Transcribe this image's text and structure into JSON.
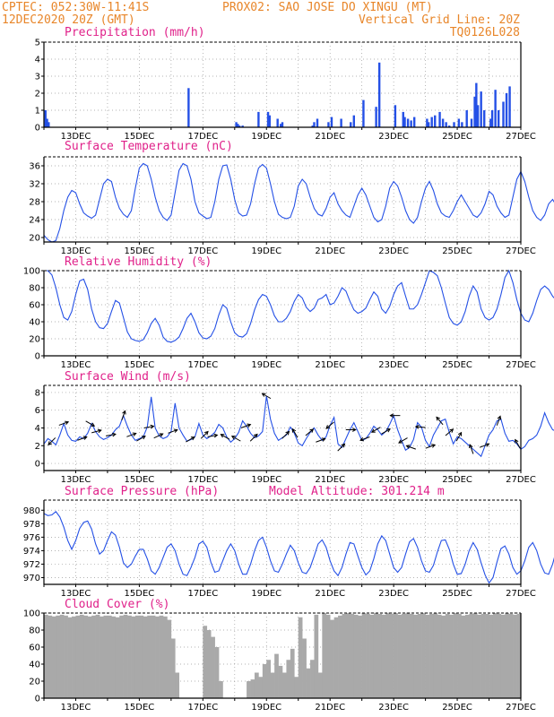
{
  "header": {
    "left_line1": "CPTEC:  052:30W-11:41S",
    "center_line1": "PROX02: SAO JOSE DO XINGU (MT)",
    "left_line2": "12DEC2020 20Z (GMT)",
    "right_line2": "Vertical Grid Line: 20Z",
    "right_line3": "TQ0126L028"
  },
  "x_axis": {
    "start_label": "12DEC2020 20Z",
    "span_days": 15,
    "tick_labels": [
      "13DEC",
      "15DEC",
      "17DEC",
      "19DEC",
      "21DEC",
      "23DEC",
      "25DEC",
      "27DEC"
    ]
  },
  "colors": {
    "line": "#2450e6",
    "bar": "#2450e6",
    "cloud": "#a9a9a9",
    "header": "#e8862a",
    "title": "#e0218a",
    "arrow": "#000000"
  },
  "chart_data": [
    {
      "id": "precip",
      "type": "bar",
      "title": "Precipitation (mm/h)",
      "ylim": [
        0,
        5
      ],
      "yticks": [
        "0",
        "1",
        "2",
        "3",
        "4",
        "5"
      ],
      "x_unit": "days since start",
      "x": [
        0.05,
        0.1,
        0.15,
        4.55,
        6.05,
        6.1,
        6.15,
        6.25,
        6.75,
        7.05,
        7.1,
        7.35,
        7.45,
        7.5,
        8.45,
        8.5,
        8.6,
        8.95,
        9.05,
        9.35,
        9.65,
        9.75,
        10.05,
        10.45,
        10.55,
        11.05,
        11.3,
        11.35,
        11.45,
        11.55,
        11.65,
        12.05,
        12.1,
        12.2,
        12.3,
        12.45,
        12.55,
        12.65,
        12.75,
        12.9,
        13.05,
        13.15,
        13.3,
        13.45,
        13.55,
        13.6,
        13.65,
        13.75,
        13.85,
        14.05,
        14.1,
        14.2,
        14.3,
        14.45,
        14.55,
        14.65
      ],
      "values": [
        1.0,
        0.5,
        0.3,
        2.3,
        0.3,
        0.2,
        0.1,
        0.1,
        0.9,
        0.9,
        0.7,
        0.5,
        0.2,
        0.3,
        0.1,
        0.3,
        0.5,
        0.3,
        0.6,
        0.5,
        0.3,
        0.7,
        1.6,
        1.2,
        3.8,
        1.3,
        0.9,
        0.6,
        0.5,
        0.4,
        0.6,
        0.5,
        0.3,
        0.6,
        0.7,
        0.9,
        0.5,
        0.3,
        0.1,
        0.3,
        0.5,
        0.3,
        1.0,
        0.5,
        1.8,
        2.6,
        1.3,
        2.1,
        1.0,
        0.5,
        1.0,
        2.2,
        1.0,
        1.5,
        2.0,
        2.4
      ]
    },
    {
      "id": "temp",
      "type": "line",
      "title": "Surface Temperature (nC)",
      "ylim": [
        19,
        38
      ],
      "yticks": [
        "20",
        "24",
        "28",
        "32",
        "36"
      ],
      "y_tick_values": [
        20,
        24,
        28,
        32,
        36
      ],
      "x_step_hours": 3,
      "values": [
        20.5,
        19.5,
        19.0,
        19.3,
        22,
        26,
        29,
        30.5,
        30,
        27.5,
        25.5,
        24.8,
        24.3,
        25,
        28.5,
        32,
        33,
        32.5,
        29,
        26.5,
        25.2,
        24.5,
        26,
        31,
        35.5,
        36.5,
        36,
        33,
        29,
        26,
        24.5,
        23.8,
        25,
        30,
        35,
        36.5,
        36,
        33,
        28,
        25.5,
        24.8,
        24.2,
        24.5,
        28,
        33,
        36,
        36.2,
        33,
        28.5,
        25.5,
        24.8,
        25,
        27.5,
        32,
        35.5,
        36.3,
        35.5,
        32,
        28,
        25.2,
        24.5,
        24.2,
        24.5,
        27,
        31.5,
        33,
        32,
        29,
        26.5,
        25.2,
        24.8,
        26.5,
        29,
        30,
        27.5,
        26,
        25,
        24.5,
        27,
        29.5,
        31,
        29.5,
        27,
        24.5,
        23.5,
        24,
        27,
        31,
        32.5,
        31.5,
        29,
        26,
        24,
        23.2,
        24.5,
        28,
        31,
        32.5,
        30.5,
        27.5,
        25.5,
        24.8,
        24.5,
        26,
        28,
        29.5,
        28,
        26.5,
        25,
        24.5,
        25.5,
        27.5,
        30.3,
        29.5,
        27,
        25.5,
        24.5,
        25,
        29,
        33,
        34.7,
        32.5,
        29,
        26,
        24.5,
        23.8,
        25,
        27.5,
        28.5,
        27,
        25.5,
        25.8,
        25.6,
        25.4
      ]
    },
    {
      "id": "rh",
      "type": "line",
      "title": "Relative Humidity (%)",
      "ylim": [
        0,
        100
      ],
      "yticks": [
        "0",
        "20",
        "40",
        "60",
        "80",
        "100"
      ],
      "y_tick_values": [
        0,
        20,
        40,
        60,
        80,
        100
      ],
      "x_step_hours": 3,
      "values": [
        100,
        100,
        95,
        80,
        60,
        45,
        42,
        52,
        72,
        88,
        90,
        78,
        55,
        40,
        33,
        32,
        38,
        52,
        65,
        62,
        45,
        28,
        20,
        18,
        17,
        19,
        27,
        38,
        44,
        36,
        22,
        17,
        16,
        18,
        22,
        32,
        44,
        50,
        40,
        27,
        21,
        20,
        23,
        32,
        48,
        60,
        56,
        40,
        27,
        23,
        22,
        26,
        38,
        54,
        66,
        72,
        70,
        60,
        47,
        40,
        40,
        44,
        52,
        64,
        72,
        68,
        57,
        52,
        56,
        66,
        68,
        72,
        60,
        62,
        70,
        80,
        76,
        64,
        54,
        50,
        52,
        56,
        66,
        75,
        70,
        55,
        50,
        58,
        72,
        82,
        86,
        70,
        55,
        55,
        60,
        72,
        86,
        100,
        98,
        94,
        80,
        62,
        45,
        38,
        36,
        40,
        52,
        70,
        82,
        75,
        55,
        45,
        42,
        45,
        55,
        72,
        92,
        100,
        86,
        66,
        50,
        42,
        40,
        50,
        65,
        78,
        82,
        78,
        70,
        65,
        72,
        80,
        76,
        70,
        72,
        75,
        80
      ]
    },
    {
      "id": "wind",
      "type": "line",
      "title": "Surface Wind (m/s)",
      "ylim": [
        -0.8,
        8.8
      ],
      "yticks": [
        "0",
        "2",
        "4",
        "6",
        "8"
      ],
      "y_tick_values": [
        0,
        2,
        4,
        6,
        8
      ],
      "x_step_hours": 3,
      "values": [
        2.2,
        2.8,
        2.5,
        2.1,
        3.2,
        4.5,
        3.2,
        2.6,
        2.5,
        3.0,
        2.8,
        3.4,
        4.5,
        3.6,
        3.0,
        2.7,
        2.9,
        3.2,
        3.8,
        4.2,
        5.4,
        4.2,
        3.2,
        2.6,
        2.8,
        3.0,
        4.1,
        7.5,
        4.0,
        3.1,
        2.8,
        3.0,
        3.6,
        6.8,
        4.0,
        3.2,
        2.5,
        2.7,
        3.0,
        4.5,
        3.2,
        2.8,
        3.1,
        3.5,
        4.4,
        4.0,
        3.0,
        2.4,
        2.8,
        3.5,
        4.8,
        4.2,
        3.4,
        2.9,
        3.1,
        3.6,
        7.6,
        5.0,
        3.4,
        2.6,
        2.9,
        3.2,
        4.1,
        3.4,
        2.3,
        2.0,
        2.8,
        3.5,
        4.0,
        3.2,
        2.6,
        3.0,
        4.3,
        5.2,
        2.2,
        1.8,
        2.8,
        3.8,
        4.6,
        3.6,
        2.6,
        2.8,
        3.4,
        4.2,
        3.8,
        3.2,
        3.6,
        4.4,
        5.4,
        3.8,
        2.6,
        1.5,
        1.8,
        2.7,
        4.6,
        4.1,
        2.6,
        1.9,
        3.2,
        4.0,
        4.8,
        5.0,
        3.5,
        2.2,
        3.0,
        2.8,
        2.4,
        2.0,
        1.6,
        1.2,
        0.8,
        2.0,
        3.2,
        3.8,
        4.8,
        5.0,
        3.4,
        2.5,
        2.6,
        2.2,
        1.6,
        1.9,
        2.6,
        2.8,
        3.2,
        4.2,
        5.7,
        4.6,
        3.8,
        3.6,
        2.8,
        2.2,
        1.8,
        2.6,
        3.2,
        1.2,
        0.6
      ]
    },
    {
      "id": "pres",
      "type": "line",
      "title": "Surface Pressure (hPa)",
      "annotation": "Model Altitude: 301.214 m",
      "ylim": [
        969,
        981.5
      ],
      "yticks": [
        "970",
        "972",
        "974",
        "976",
        "978",
        "980"
      ],
      "y_tick_values": [
        970,
        972,
        974,
        976,
        978,
        980
      ],
      "x_step_hours": 3,
      "values": [
        979.5,
        979.2,
        979.3,
        979.8,
        979.0,
        977.5,
        975.5,
        974.2,
        975.5,
        977.3,
        978.2,
        978.4,
        977.2,
        975.0,
        973.5,
        974.0,
        975.5,
        976.8,
        976.3,
        974.5,
        972.2,
        971.5,
        972.0,
        973.2,
        974.2,
        974.2,
        972.8,
        971.0,
        970.5,
        971.5,
        973.0,
        974.5,
        975.0,
        974.0,
        972.0,
        970.5,
        970.3,
        971.5,
        973.0,
        975.0,
        975.4,
        974.5,
        972.3,
        970.8,
        971.0,
        972.5,
        974.0,
        975.0,
        974.0,
        972.0,
        970.5,
        970.5,
        972.0,
        974.0,
        975.5,
        976.0,
        974.5,
        972.5,
        971.0,
        970.8,
        972.0,
        973.5,
        974.8,
        974.0,
        972.2,
        970.8,
        970.6,
        971.5,
        973.2,
        975.0,
        975.6,
        974.5,
        972.5,
        971.0,
        970.3,
        971.5,
        973.5,
        975.2,
        975.0,
        973.2,
        971.5,
        970.4,
        971.0,
        972.8,
        975.0,
        976.2,
        975.5,
        973.5,
        971.5,
        970.8,
        971.5,
        973.5,
        975.3,
        975.8,
        974.5,
        972.5,
        971.0,
        970.8,
        971.8,
        973.8,
        975.5,
        975.6,
        974.2,
        972.0,
        970.5,
        970.6,
        972.0,
        974.0,
        975.2,
        974.2,
        972.2,
        970.4,
        969.2,
        970.0,
        972.3,
        974.3,
        974.7,
        973.5,
        971.5,
        970.5,
        971.0,
        972.5,
        974.5,
        975.2,
        974.0,
        972.0,
        970.7,
        970.5,
        972.0,
        974.2,
        976.0,
        974.5,
        972.0,
        970.8,
        971.5,
        973.5,
        975.3
      ]
    },
    {
      "id": "cloud",
      "type": "area",
      "title": "Cloud Cover (%)",
      "ylim": [
        0,
        100
      ],
      "yticks": [
        "0",
        "20",
        "40",
        "60",
        "80",
        "100"
      ],
      "y_tick_values": [
        0,
        20,
        40,
        60,
        80,
        100
      ],
      "x_step_hours": 3,
      "values": [
        98,
        97,
        96,
        97,
        98,
        97,
        95,
        96,
        97,
        98,
        97,
        96,
        97,
        98,
        96,
        97,
        97,
        96,
        95,
        97,
        98,
        97,
        96,
        97,
        97,
        96,
        97,
        97,
        96,
        97,
        96,
        92,
        70,
        30,
        0,
        0,
        0,
        0,
        0,
        0,
        85,
        80,
        72,
        60,
        20,
        0,
        0,
        0,
        0,
        0,
        0,
        20,
        22,
        30,
        25,
        40,
        45,
        30,
        52,
        38,
        30,
        45,
        58,
        25,
        95,
        70,
        35,
        45,
        98,
        30,
        100,
        98,
        92,
        95,
        97,
        99,
        100,
        99,
        98,
        97,
        100,
        99,
        98,
        100,
        99,
        98,
        100,
        99,
        100,
        98,
        99,
        100,
        99,
        98,
        99,
        100,
        98,
        99,
        100,
        98,
        97,
        99,
        98,
        100,
        99,
        97,
        98,
        99,
        100,
        98,
        99,
        99,
        98,
        100,
        99,
        98,
        100,
        99,
        98,
        99,
        100,
        100,
        99,
        98,
        97,
        99,
        100,
        98,
        99,
        100,
        99,
        98,
        99,
        100,
        99,
        98,
        100
      ]
    }
  ],
  "wind_arrows": [
    {
      "day": 0.25,
      "dir": 225
    },
    {
      "day": 0.62,
      "dir": 70
    },
    {
      "day": 1.2,
      "dir": 70
    },
    {
      "day": 1.45,
      "dir": 120
    },
    {
      "day": 1.65,
      "dir": 75
    },
    {
      "day": 2.1,
      "dir": 80
    },
    {
      "day": 2.5,
      "dir": 20
    },
    {
      "day": 2.75,
      "dir": 70
    },
    {
      "day": 3.05,
      "dir": 60
    },
    {
      "day": 3.3,
      "dir": 80
    },
    {
      "day": 3.6,
      "dir": 65
    },
    {
      "day": 4.05,
      "dir": 70
    },
    {
      "day": 4.6,
      "dir": 60
    },
    {
      "day": 5.05,
      "dir": 45
    },
    {
      "day": 5.3,
      "dir": 80
    },
    {
      "day": 5.7,
      "dir": 300
    },
    {
      "day": 6.05,
      "dir": 300
    },
    {
      "day": 6.35,
      "dir": 70
    },
    {
      "day": 6.6,
      "dir": 45
    },
    {
      "day": 7.0,
      "dir": 300
    },
    {
      "day": 7.6,
      "dir": 45
    },
    {
      "day": 7.9,
      "dir": 330
    },
    {
      "day": 8.35,
      "dir": 50
    },
    {
      "day": 8.7,
      "dir": 70
    },
    {
      "day": 9.0,
      "dir": 230
    },
    {
      "day": 9.35,
      "dir": 45
    },
    {
      "day": 9.65,
      "dir": 90
    },
    {
      "day": 10.1,
      "dir": 250
    },
    {
      "day": 10.45,
      "dir": 240
    },
    {
      "day": 10.75,
      "dir": 60
    },
    {
      "day": 11.05,
      "dir": 270
    },
    {
      "day": 11.3,
      "dir": 240
    },
    {
      "day": 11.55,
      "dir": 290
    },
    {
      "day": 11.85,
      "dir": 275
    },
    {
      "day": 12.15,
      "dir": 70
    },
    {
      "day": 12.45,
      "dir": 320
    },
    {
      "day": 12.75,
      "dir": 50
    },
    {
      "day": 13.05,
      "dir": 30
    },
    {
      "day": 13.45,
      "dir": 340
    },
    {
      "day": 13.85,
      "dir": 70
    },
    {
      "day": 14.3,
      "dir": 20
    },
    {
      "day": 14.9,
      "dir": 330
    }
  ]
}
